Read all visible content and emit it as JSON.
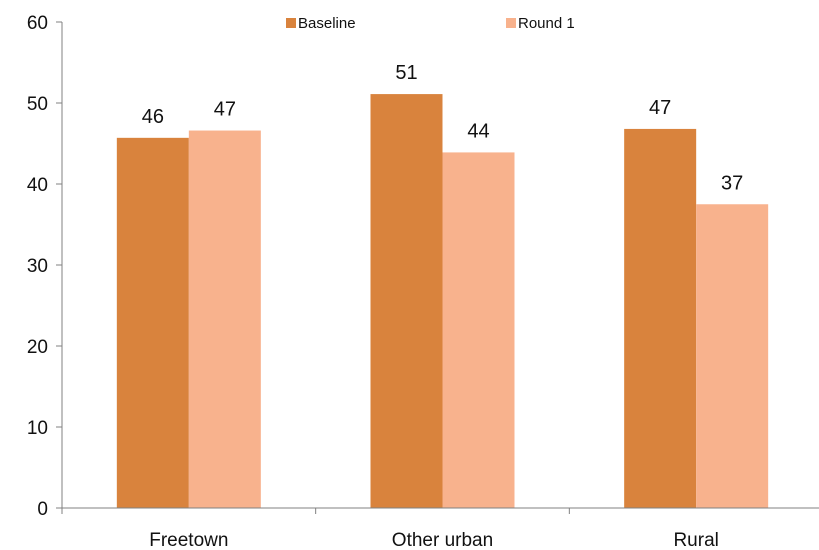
{
  "chart_data": {
    "type": "bar",
    "categories": [
      "Freetown",
      "Other urban",
      "Rural"
    ],
    "series": [
      {
        "name": "Baseline",
        "values": [
          45.7,
          51.1,
          46.8
        ],
        "labels": [
          "46",
          "51",
          "47"
        ],
        "color": "#D9833D"
      },
      {
        "name": "Round 1",
        "values": [
          46.6,
          43.9,
          37.5
        ],
        "labels": [
          "47",
          "44",
          "37"
        ],
        "color": "#F8B28D"
      }
    ],
    "title": "",
    "xlabel": "",
    "ylabel": "",
    "ylim": [
      0,
      60
    ],
    "yticks": [
      0,
      10,
      20,
      30,
      40,
      50,
      60
    ],
    "grid": false,
    "legend_position": "top"
  }
}
